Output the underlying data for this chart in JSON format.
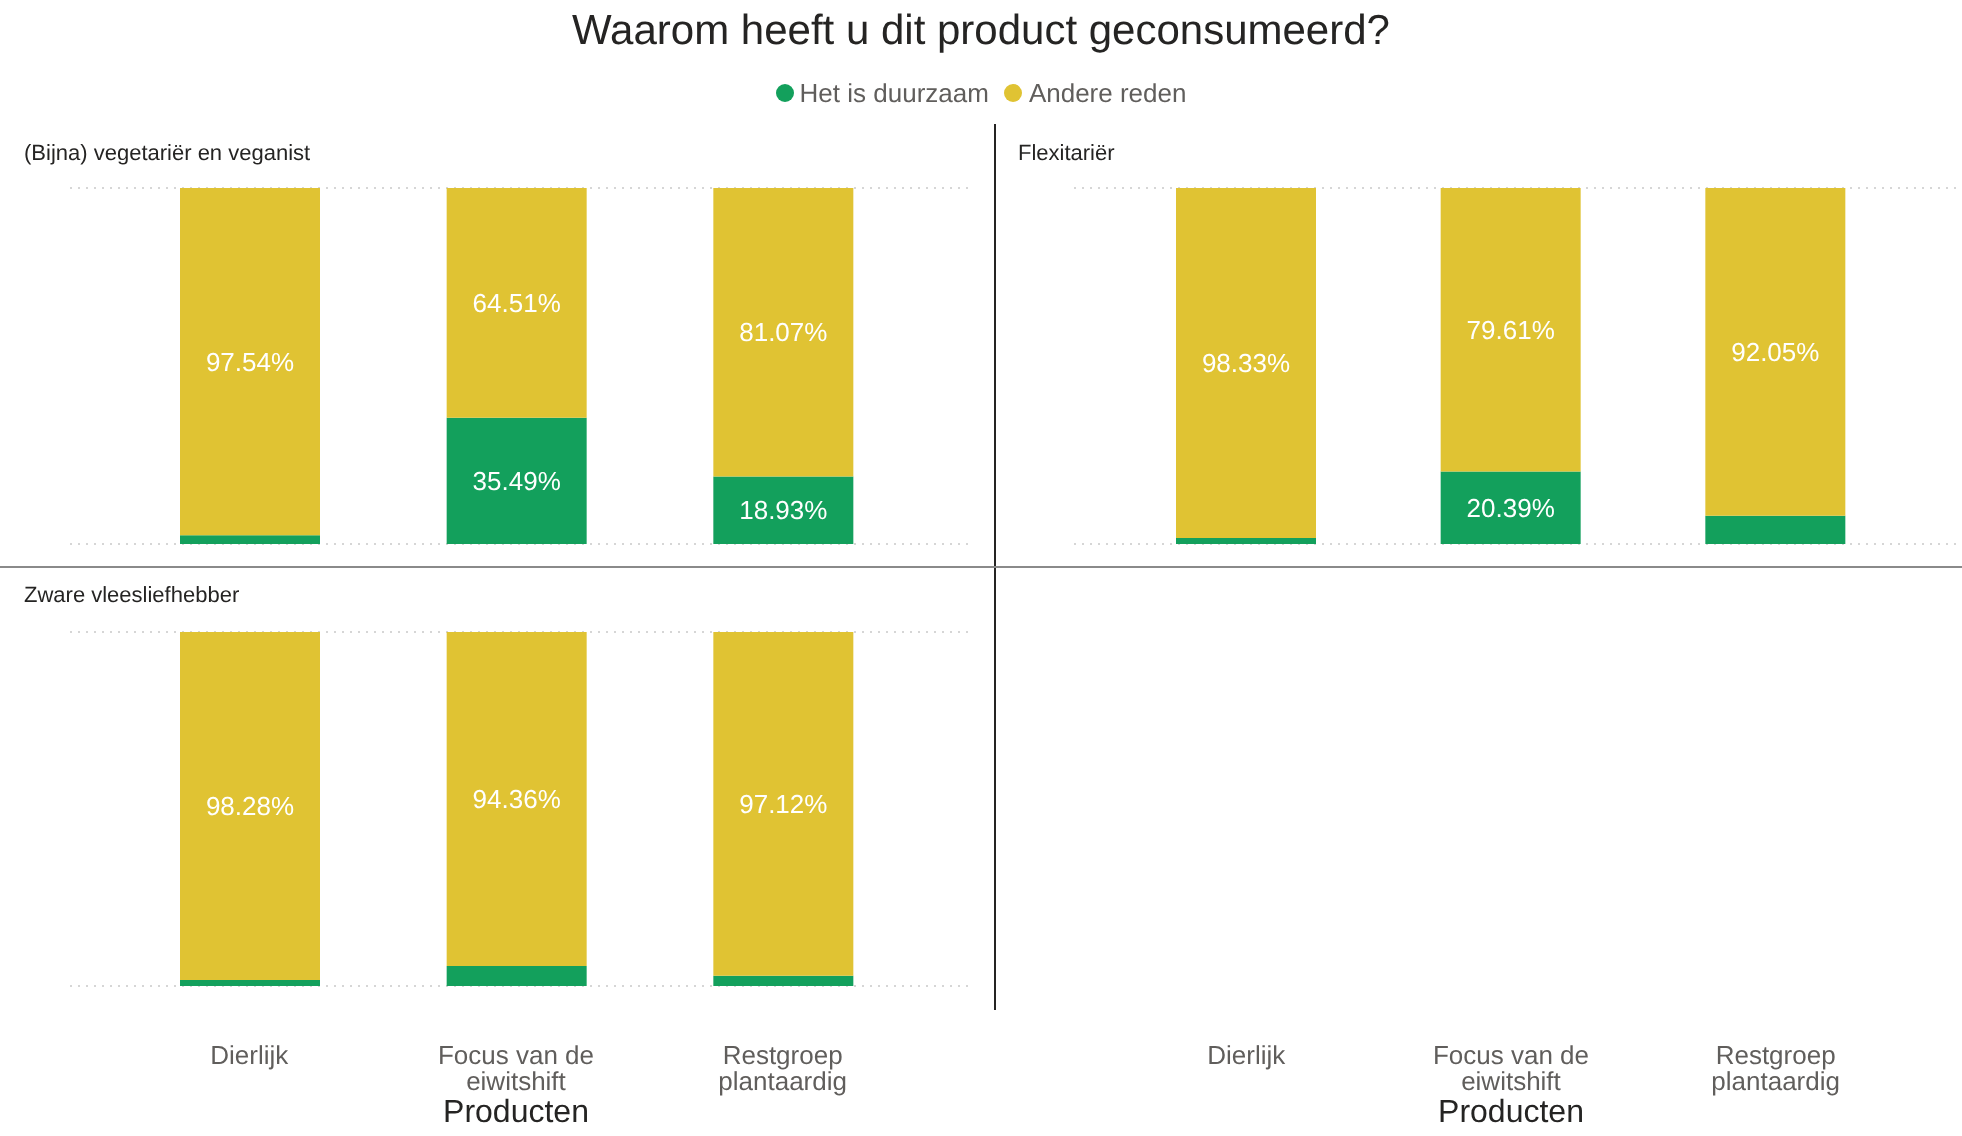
{
  "chart_data": [
    {
      "type": "bar",
      "title": "Waarom heeft u dit product geconsumeerd?",
      "subtitle": "(Bijna) vegetariër en veganist",
      "categories": [
        null,
        null,
        null
      ],
      "stacked": true,
      "legend": "top",
      "grid": "y",
      "tick_labels": false,
      "ylim": [
        0,
        100
      ],
      "series": [
        {
          "name": "Het is duurzaam",
          "color": "#13a05c",
          "values": [
            2.46,
            35.49,
            18.93
          ],
          "value_labels": [
            null,
            "35.49%",
            "18.93%"
          ]
        },
        {
          "name": "Andere reden",
          "color": "#e0c333",
          "values": [
            97.54,
            64.51,
            81.07
          ],
          "value_labels": [
            "97.54%",
            "64.51%",
            "81.07%"
          ]
        }
      ]
    },
    {
      "type": "bar",
      "subtitle": "Flexitariër",
      "categories": [
        "Dierlijk",
        "Focus van de eiwitshift",
        "Restgroep plantaardig"
      ],
      "xlabel": "Producten",
      "stacked": true,
      "grid": "y",
      "tick_labels": "x",
      "ylim": [
        0,
        100
      ],
      "series": [
        {
          "color": "#13a05c",
          "values": [
            1.67,
            20.39,
            7.95
          ],
          "value_labels": [
            null,
            "20.39%",
            null
          ]
        },
        {
          "color": "#e0c333",
          "values": [
            98.33,
            79.61,
            92.05
          ],
          "value_labels": [
            "98.33%",
            "79.61%",
            "92.05%"
          ]
        }
      ]
    },
    {
      "type": "bar",
      "subtitle": "Zware vleesliefhebber",
      "categories": [
        "Dierlijk",
        "Focus van de eiwitshift",
        "Restgroep plantaardig"
      ],
      "xlabel": "Producten",
      "stacked": true,
      "grid": "y",
      "tick_labels": "x",
      "ylim": [
        0,
        100
      ],
      "series": [
        {
          "color": "#13a05c",
          "values": [
            1.72,
            5.64,
            2.88
          ],
          "value_labels": [
            null,
            null,
            null
          ]
        },
        {
          "color": "#e0c333",
          "values": [
            98.28,
            94.36,
            97.12
          ],
          "value_labels": [
            "98.28%",
            "94.36%",
            "97.12%"
          ]
        }
      ]
    }
  ]
}
